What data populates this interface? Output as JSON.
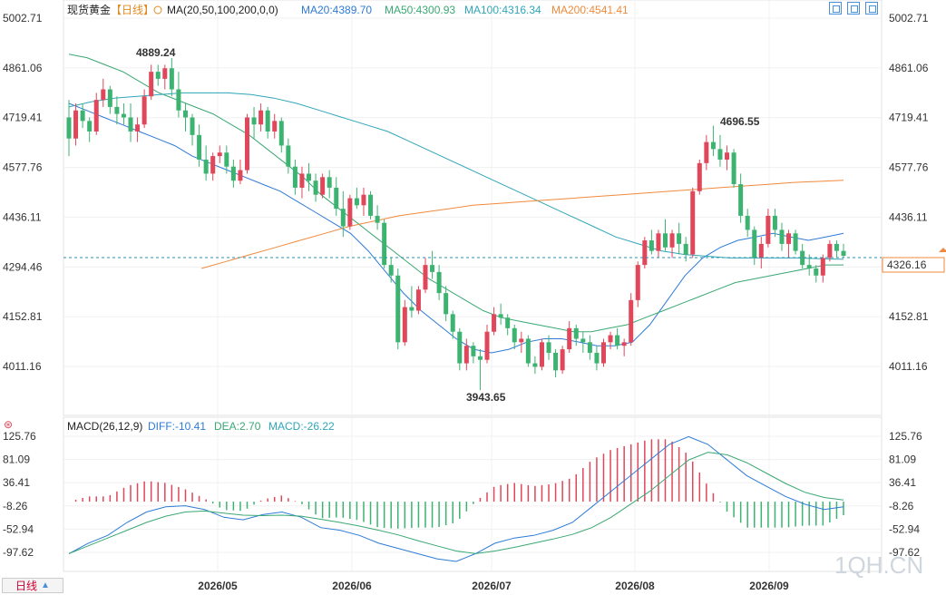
{
  "header": {
    "title": "现货黄金",
    "period": "【日线】",
    "ma_label": "MA(20,50,100,200,0,0)",
    "ma20": "MA20:4389.70",
    "ma50": "MA50:4300.93",
    "ma100": "MA100:4316.34",
    "ma200": "MA200:4541.41"
  },
  "colors": {
    "up": "#e0475a",
    "down": "#3cb371",
    "ma20": "#2e7bd6",
    "ma50": "#3aa873",
    "ma100": "#2fa6b8",
    "ma200": "#f08a3c",
    "diff": "#2e7bd6",
    "dea": "#3aa873",
    "price_line": "#2a8fb0"
  },
  "price_axis": [
    "5002.71",
    "4861.06",
    "4719.41",
    "4577.76",
    "4436.11",
    "4294.46",
    "4152.81",
    "4011.16"
  ],
  "macd_axis": [
    "125.76",
    "81.09",
    "36.41",
    "-8.26",
    "-52.94",
    "-97.62"
  ],
  "x_labels": [
    "2026/05",
    "2026/06",
    "2026/07",
    "2026/08",
    "2026/09"
  ],
  "annotations": {
    "high": "4889.24",
    "mid_high": "4696.55",
    "low": "3943.65"
  },
  "current_price": "4326.16",
  "macd_header": {
    "label": "MACD(26,12,9)",
    "diff": "DIFF:-10.41",
    "dea": "DEA:2.70",
    "macd": "MACD:-26.22"
  },
  "footer": {
    "period_button": "日线",
    "watermark": "1QH.CN"
  },
  "chart_data": {
    "type": "candlestick",
    "title": "现货黄金",
    "ylim": [
      3943.65,
      5002.71
    ],
    "x_categories": [
      "2026/05",
      "2026/06",
      "2026/07",
      "2026/08",
      "2026/09"
    ],
    "ohlc": [
      [
        4720,
        4770,
        4610,
        4660
      ],
      [
        4660,
        4760,
        4640,
        4740
      ],
      [
        4740,
        4760,
        4690,
        4710
      ],
      [
        4710,
        4720,
        4650,
        4680
      ],
      [
        4680,
        4790,
        4670,
        4770
      ],
      [
        4770,
        4830,
        4750,
        4800
      ],
      [
        4800,
        4810,
        4730,
        4750
      ],
      [
        4750,
        4780,
        4700,
        4730
      ],
      [
        4730,
        4760,
        4700,
        4720
      ],
      [
        4720,
        4760,
        4650,
        4680
      ],
      [
        4680,
        4720,
        4650,
        4700
      ],
      [
        4700,
        4800,
        4690,
        4780
      ],
      [
        4780,
        4870,
        4770,
        4850
      ],
      [
        4850,
        4870,
        4810,
        4830
      ],
      [
        4830,
        4870,
        4800,
        4860
      ],
      [
        4860,
        4889,
        4780,
        4800
      ],
      [
        4800,
        4850,
        4720,
        4740
      ],
      [
        4740,
        4760,
        4680,
        4720
      ],
      [
        4720,
        4730,
        4640,
        4670
      ],
      [
        4670,
        4700,
        4580,
        4600
      ],
      [
        4600,
        4640,
        4540,
        4560
      ],
      [
        4560,
        4620,
        4540,
        4610
      ],
      [
        4610,
        4640,
        4590,
        4620
      ],
      [
        4620,
        4640,
        4560,
        4580
      ],
      [
        4580,
        4600,
        4520,
        4540
      ],
      [
        4540,
        4600,
        4530,
        4570
      ],
      [
        4570,
        4730,
        4560,
        4720
      ],
      [
        4720,
        4750,
        4660,
        4700
      ],
      [
        4700,
        4760,
        4680,
        4740
      ],
      [
        4740,
        4750,
        4660,
        4680
      ],
      [
        4680,
        4730,
        4660,
        4710
      ],
      [
        4710,
        4720,
        4620,
        4640
      ],
      [
        4640,
        4660,
        4560,
        4580
      ],
      [
        4580,
        4600,
        4500,
        4520
      ],
      [
        4520,
        4580,
        4490,
        4560
      ],
      [
        4560,
        4590,
        4510,
        4540
      ],
      [
        4540,
        4560,
        4480,
        4500
      ],
      [
        4500,
        4560,
        4490,
        4550
      ],
      [
        4550,
        4570,
        4490,
        4520
      ],
      [
        4520,
        4550,
        4440,
        4460
      ],
      [
        4460,
        4510,
        4380,
        4410
      ],
      [
        4410,
        4500,
        4400,
        4490
      ],
      [
        4490,
        4520,
        4460,
        4470
      ],
      [
        4470,
        4520,
        4440,
        4500
      ],
      [
        4500,
        4510,
        4430,
        4440
      ],
      [
        4440,
        4470,
        4400,
        4420
      ],
      [
        4420,
        4430,
        4290,
        4300
      ],
      [
        4300,
        4320,
        4250,
        4270
      ],
      [
        4270,
        4290,
        4060,
        4080
      ],
      [
        4080,
        4200,
        4070,
        4180
      ],
      [
        4180,
        4240,
        4150,
        4170
      ],
      [
        4170,
        4240,
        4160,
        4230
      ],
      [
        4230,
        4320,
        4220,
        4300
      ],
      [
        4300,
        4340,
        4260,
        4280
      ],
      [
        4280,
        4300,
        4200,
        4220
      ],
      [
        4220,
        4240,
        4140,
        4160
      ],
      [
        4160,
        4170,
        4090,
        4110
      ],
      [
        4110,
        4120,
        4000,
        4020
      ],
      [
        4020,
        4090,
        4000,
        4070
      ],
      [
        4070,
        4080,
        4020,
        4040
      ],
      [
        4040,
        4060,
        3943.65,
        4030
      ],
      [
        4030,
        4130,
        4020,
        4110
      ],
      [
        4110,
        4180,
        4100,
        4160
      ],
      [
        4160,
        4190,
        4130,
        4150
      ],
      [
        4150,
        4160,
        4100,
        4120
      ],
      [
        4120,
        4130,
        4060,
        4080
      ],
      [
        4080,
        4110,
        4050,
        4090
      ],
      [
        4090,
        4100,
        4010,
        4020
      ],
      [
        4020,
        4040,
        3990,
        4010
      ],
      [
        4010,
        4090,
        4000,
        4080
      ],
      [
        4080,
        4100,
        4030,
        4050
      ],
      [
        4050,
        4060,
        3980,
        4000
      ],
      [
        4000,
        4070,
        3990,
        4060
      ],
      [
        4060,
        4140,
        4050,
        4120
      ],
      [
        4120,
        4130,
        4070,
        4090
      ],
      [
        4090,
        4110,
        4050,
        4080
      ],
      [
        4080,
        4100,
        4030,
        4050
      ],
      [
        4050,
        4070,
        4000,
        4020
      ],
      [
        4020,
        4090,
        4010,
        4080
      ],
      [
        4080,
        4110,
        4060,
        4100
      ],
      [
        4100,
        4120,
        4060,
        4070
      ],
      [
        4070,
        4090,
        4040,
        4080
      ],
      [
        4080,
        4220,
        4070,
        4200
      ],
      [
        4200,
        4310,
        4180,
        4300
      ],
      [
        4300,
        4380,
        4290,
        4370
      ],
      [
        4370,
        4400,
        4330,
        4340
      ],
      [
        4340,
        4400,
        4320,
        4390
      ],
      [
        4390,
        4430,
        4340,
        4350
      ],
      [
        4350,
        4400,
        4320,
        4390
      ],
      [
        4390,
        4420,
        4330,
        4360
      ],
      [
        4360,
        4380,
        4310,
        4330
      ],
      [
        4330,
        4520,
        4320,
        4510
      ],
      [
        4510,
        4600,
        4500,
        4590
      ],
      [
        4590,
        4670,
        4570,
        4650
      ],
      [
        4650,
        4696.55,
        4610,
        4630
      ],
      [
        4630,
        4670,
        4580,
        4600
      ],
      [
        4600,
        4640,
        4570,
        4620
      ],
      [
        4620,
        4630,
        4520,
        4530
      ],
      [
        4530,
        4560,
        4420,
        4440
      ],
      [
        4440,
        4460,
        4380,
        4400
      ],
      [
        4400,
        4410,
        4300,
        4320
      ],
      [
        4320,
        4380,
        4290,
        4360
      ],
      [
        4360,
        4460,
        4350,
        4440
      ],
      [
        4440,
        4460,
        4380,
        4400
      ],
      [
        4400,
        4420,
        4340,
        4360
      ],
      [
        4360,
        4400,
        4320,
        4390
      ],
      [
        4390,
        4400,
        4330,
        4340
      ],
      [
        4340,
        4360,
        4290,
        4300
      ],
      [
        4300,
        4330,
        4270,
        4290
      ],
      [
        4290,
        4300,
        4250,
        4270
      ],
      [
        4270,
        4330,
        4250,
        4320
      ],
      [
        4320,
        4370,
        4310,
        4360
      ],
      [
        4360,
        4370,
        4320,
        4340
      ],
      [
        4340,
        4360,
        4320,
        4326.16
      ]
    ],
    "ma20": [
      4760,
      4740,
      4720,
      4700,
      4680,
      4660,
      4640,
      4610,
      4590,
      4570,
      4550,
      4530,
      4510,
      4480,
      4450,
      4420,
      4390,
      4340,
      4280,
      4220,
      4170,
      4130,
      4090,
      4060,
      4050,
      4060,
      4080,
      4090,
      4090,
      4080,
      4070,
      4070,
      4080,
      4130,
      4200,
      4270,
      4320,
      4350,
      4370,
      4380,
      4390,
      4380,
      4370,
      4380,
      4390
    ],
    "ma50": [
      4900,
      4890,
      4870,
      4850,
      4820,
      4790,
      4770,
      4750,
      4730,
      4700,
      4670,
      4630,
      4590,
      4550,
      4500,
      4460,
      4420,
      4380,
      4340,
      4300,
      4260,
      4230,
      4200,
      4170,
      4150,
      4140,
      4130,
      4120,
      4110,
      4110,
      4120,
      4130,
      4150,
      4170,
      4190,
      4210,
      4230,
      4250,
      4260,
      4270,
      4280,
      4290,
      4300,
      4300
    ],
    "ma100": [
      4750,
      4765,
      4775,
      4780,
      4785,
      4790,
      4790,
      4790,
      4785,
      4775,
      4760,
      4740,
      4720,
      4700,
      4680,
      4650,
      4620,
      4590,
      4560,
      4530,
      4500,
      4470,
      4440,
      4410,
      4380,
      4360,
      4340,
      4330,
      4325,
      4320,
      4320,
      4320,
      4320,
      4318,
      4316
    ],
    "ma200": [
      4290,
      4310,
      4330,
      4350,
      4370,
      4390,
      4410,
      4425,
      4440,
      4450,
      4460,
      4470,
      4475,
      4480,
      4485,
      4490,
      4495,
      4500,
      4505,
      4510,
      4515,
      4520,
      4525,
      4530,
      4535,
      4538,
      4541
    ],
    "macd": {
      "diff": [
        -100,
        -80,
        -65,
        -40,
        -20,
        -10,
        -8,
        -15,
        -30,
        -35,
        -25,
        -20,
        -30,
        -50,
        -55,
        -65,
        -80,
        -90,
        -100,
        -110,
        -115,
        -100,
        -80,
        -70,
        -65,
        -55,
        -40,
        -10,
        20,
        50,
        80,
        110,
        125,
        110,
        80,
        50,
        30,
        10,
        -5,
        -15,
        -10
      ],
      "dea": [
        -100,
        -85,
        -70,
        -55,
        -40,
        -28,
        -20,
        -18,
        -22,
        -26,
        -27,
        -26,
        -28,
        -34,
        -40,
        -47,
        -55,
        -64,
        -75,
        -85,
        -95,
        -100,
        -95,
        -88,
        -80,
        -72,
        -63,
        -50,
        -30,
        -5,
        20,
        50,
        80,
        95,
        90,
        75,
        55,
        35,
        18,
        8,
        3
      ]
    }
  }
}
